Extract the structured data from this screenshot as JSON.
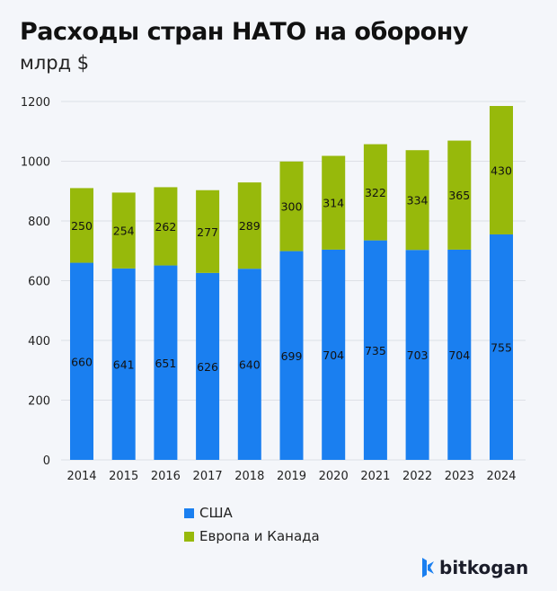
{
  "chart_data": {
    "type": "bar",
    "stacked": true,
    "title": "Расходы стран НАТО на оборону",
    "subtitle": "млрд $",
    "categories": [
      "2014",
      "2015",
      "2016",
      "2017",
      "2018",
      "2019",
      "2020",
      "2021",
      "2022",
      "2023",
      "2024"
    ],
    "series": [
      {
        "name": "США",
        "color": "#1a7ff0",
        "values": [
          660,
          641,
          651,
          626,
          640,
          699,
          704,
          735,
          703,
          704,
          755
        ]
      },
      {
        "name": "Европа и Канада",
        "color": "#97b90b",
        "values": [
          250,
          254,
          262,
          277,
          289,
          300,
          314,
          322,
          334,
          365,
          430
        ]
      }
    ],
    "ylim": [
      0,
      1200
    ],
    "yticks": [
      0,
      200,
      400,
      600,
      800,
      1000,
      1200
    ],
    "grid": true,
    "legend": "bottom"
  },
  "brand": {
    "name": "bitkogan",
    "color": "#1a7ff0"
  }
}
